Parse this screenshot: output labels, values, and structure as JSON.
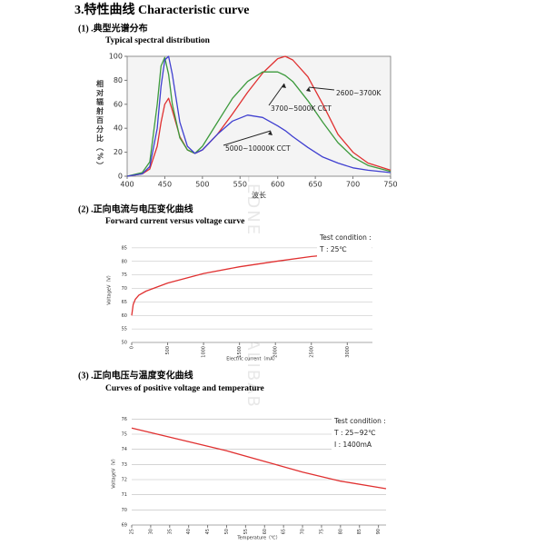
{
  "title": "3.特性曲线 Characteristic curve",
  "watermark": "LEDNEW-LED.EN.ALIBABA.COM",
  "chart_data": [
    {
      "type": "line",
      "title": "(1) .典型光谱分布",
      "subtitle": "Typical spectral distribution",
      "x_label": "波长",
      "y_label": "相对辐射百分比（%）",
      "x": [
        400,
        420,
        430,
        440,
        445,
        450,
        455,
        460,
        470,
        480,
        490,
        500,
        520,
        540,
        560,
        580,
        600,
        610,
        620,
        640,
        660,
        680,
        700,
        720,
        750
      ],
      "series": [
        {
          "name": "2600~3700K",
          "color": "#e03030",
          "values": [
            0,
            2,
            6,
            25,
            45,
            60,
            65,
            55,
            33,
            22,
            19,
            22,
            35,
            52,
            70,
            86,
            98,
            100,
            97,
            83,
            60,
            35,
            20,
            11,
            5
          ]
        },
        {
          "name": "3700~5000K CCT",
          "color": "#3c9a3c",
          "values": [
            0,
            3,
            12,
            60,
            92,
            99,
            85,
            60,
            32,
            22,
            19,
            25,
            45,
            65,
            79,
            87,
            87,
            84,
            79,
            63,
            45,
            28,
            16,
            9,
            4
          ]
        },
        {
          "name": "5000~10000K CCT",
          "color": "#3f3fd0",
          "values": [
            0,
            2,
            8,
            40,
            75,
            97,
            100,
            85,
            45,
            25,
            19,
            22,
            35,
            46,
            51,
            49,
            42,
            38,
            33,
            24,
            16,
            11,
            7,
            5,
            3
          ]
        }
      ],
      "xlim": [
        400,
        750
      ],
      "xticks": [
        400,
        450,
        500,
        550,
        600,
        650,
        700,
        750
      ],
      "ylim": [
        0,
        100
      ],
      "yticks": [
        0,
        20,
        40,
        60,
        80,
        100
      ],
      "grid": false
    },
    {
      "type": "line",
      "title": "(2) .正向电流与电压变化曲线",
      "subtitle": "Forward current versus voltage curve",
      "x_label": "Electric current（mA）",
      "y_label": "VoltageV（V）",
      "annotations": [
        "Test condition :",
        "T : 25℃"
      ],
      "x": [
        0,
        20,
        50,
        100,
        200,
        500,
        1000,
        1500,
        2000,
        2500,
        3000,
        3300
      ],
      "series": [
        {
          "color": "#e03030",
          "values": [
            60,
            64,
            66,
            67.5,
            69,
            72,
            75.5,
            78,
            80,
            81.8,
            83,
            83.8
          ]
        }
      ],
      "xlim": [
        0,
        3350
      ],
      "xticks": [
        0,
        500,
        1000,
        1500,
        2000,
        2500,
        3000
      ],
      "ylim": [
        50,
        90
      ],
      "yticks": [
        50,
        55,
        60,
        65,
        70,
        75,
        80,
        85
      ],
      "grid": true
    },
    {
      "type": "line",
      "title": "(3) .正向电压与温度变化曲线",
      "subtitle": "Curves of positive voltage and temperature",
      "x_label": "Temperature（℃）",
      "y_label": "VoltageV（V）",
      "annotations": [
        "Test condition :",
        "T : 25~92℃",
        "I : 1400mA"
      ],
      "x": [
        25,
        30,
        40,
        50,
        60,
        70,
        80,
        92
      ],
      "series": [
        {
          "color": "#e03030",
          "values": [
            75.4,
            75.1,
            74.5,
            73.9,
            73.2,
            72.5,
            71.9,
            71.4
          ]
        }
      ],
      "xlim": [
        25,
        92
      ],
      "xticks": [
        25,
        30,
        35,
        40,
        45,
        50,
        55,
        60,
        65,
        70,
        75,
        80,
        85,
        90
      ],
      "ylim": [
        69,
        76.8
      ],
      "yticks": [
        69,
        70,
        71,
        72,
        73,
        74,
        75,
        76
      ],
      "grid": true
    }
  ]
}
